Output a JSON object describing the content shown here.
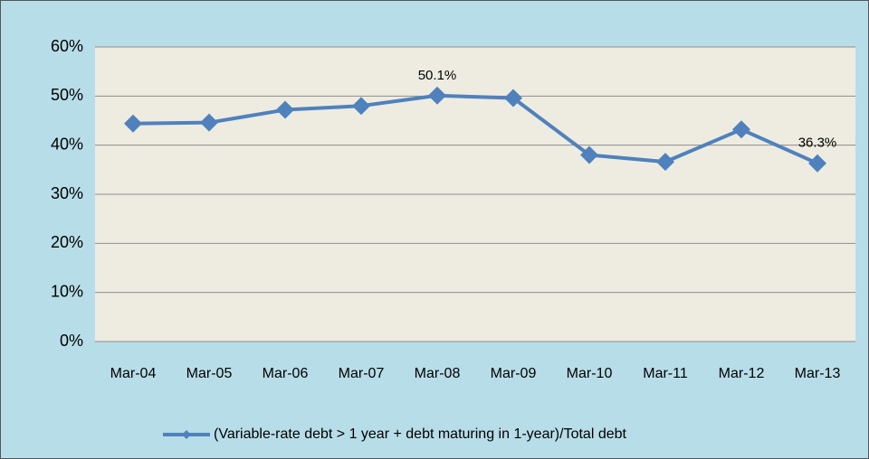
{
  "chart_data": {
    "type": "line",
    "categories": [
      "Mar-04",
      "Mar-05",
      "Mar-06",
      "Mar-07",
      "Mar-08",
      "Mar-09",
      "Mar-10",
      "Mar-11",
      "Mar-12",
      "Mar-13"
    ],
    "series": [
      {
        "name": "(Variable-rate debt > 1 year + debt maturing in 1-year)/Total debt",
        "color": "#4f81bd",
        "values": [
          44.4,
          44.6,
          47.2,
          48.0,
          50.1,
          49.6,
          38.0,
          36.6,
          43.2,
          36.3
        ],
        "value_labels": [
          null,
          null,
          null,
          null,
          "50.1%",
          null,
          null,
          null,
          null,
          "36.3%"
        ]
      }
    ],
    "ylim": [
      0,
      60
    ],
    "yticks": [
      {
        "value": 0,
        "label": "0%"
      },
      {
        "value": 10,
        "label": "10%"
      },
      {
        "value": 20,
        "label": "20%"
      },
      {
        "value": 30,
        "label": "30%"
      },
      {
        "value": 40,
        "label": "40%"
      },
      {
        "value": 50,
        "label": "50%"
      },
      {
        "value": 60,
        "label": "60%"
      }
    ],
    "grid": true,
    "legend": "bottom"
  }
}
